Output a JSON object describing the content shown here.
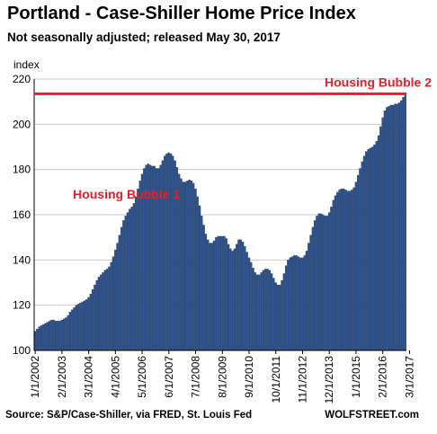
{
  "title": "Portland - Case-Shiller Home Price Index",
  "subtitle": "Not seasonally adjusted; released May 30, 2017",
  "footer": {
    "source": "Source: S&P/Case-Shiller, via FRED,  St. Louis Fed",
    "brand": "WOLFSTREET.com"
  },
  "colors": {
    "bars": "#2b4f86",
    "bar_edge": "#1c3563",
    "reference_line": "#e3202a",
    "annotation": "#e3202a",
    "grid": "#c9c9c9"
  },
  "chart_data": {
    "type": "bar",
    "title": "Portland - Case-Shiller Home Price Index",
    "subtitle": "Not seasonally adjusted; released May 30, 2017",
    "ylabel": "index",
    "ylim": [
      100,
      220
    ],
    "yticks": [
      100,
      120,
      140,
      160,
      180,
      200,
      220
    ],
    "grid": "horizontal",
    "x_start": "1/1/2002",
    "x_frequency": "monthly",
    "xticks": [
      "1/1/2002",
      "2/1/2003",
      "3/1/2004",
      "4/1/2005",
      "5/1/2006",
      "6/1/2007",
      "7/1/2008",
      "8/1/2009",
      "9/1/2010",
      "10/1/2011",
      "11/1/2012",
      "12/1/2013",
      "1/1/2015",
      "2/1/2016",
      "3/1/2017"
    ],
    "annotations": [
      {
        "text": "Housing Bubble 1",
        "x": "5/1/2006"
      },
      {
        "text": "Housing Bubble 2",
        "x": "3/1/2017"
      }
    ],
    "reference_lines": [
      {
        "y": 213.5,
        "style": "horizontal"
      }
    ],
    "series": [
      {
        "values": [
          108.5,
          109.5,
          110.5,
          111,
          111.5,
          112,
          112.5,
          113,
          113.5,
          113.5,
          113,
          113,
          113,
          113.5,
          114,
          114.5,
          115.5,
          117,
          118,
          119,
          120,
          120.5,
          121,
          121.5,
          122,
          122.5,
          123.5,
          125,
          127,
          129,
          131,
          132.5,
          133.5,
          134.5,
          135.5,
          136,
          137,
          139,
          141.5,
          144.5,
          147.5,
          151,
          154.5,
          157.5,
          159.5,
          161,
          162.5,
          163.5,
          165,
          168,
          171.5,
          175,
          178,
          180.5,
          182,
          182.5,
          182,
          181.5,
          181.5,
          180.5,
          180.5,
          182,
          184,
          186,
          187,
          187.5,
          187,
          186,
          184,
          181,
          178,
          176,
          174.5,
          174.5,
          175,
          175.5,
          175,
          174,
          171.5,
          168,
          164,
          159.5,
          155.5,
          151.5,
          149,
          147.5,
          147.5,
          148.5,
          150,
          150.5,
          150.5,
          150.5,
          150.5,
          149.5,
          147,
          145,
          144,
          145,
          147,
          149,
          149,
          148,
          146,
          143.5,
          141,
          139,
          136.5,
          134.5,
          133.5,
          133.5,
          134.5,
          135.5,
          136,
          136,
          135.5,
          134,
          132,
          130,
          129,
          129,
          131,
          134,
          137.5,
          140,
          141,
          141.5,
          142,
          142,
          141.5,
          141,
          141,
          142,
          144,
          147.5,
          151,
          154.5,
          157.5,
          159.5,
          160.5,
          160.5,
          160,
          159.5,
          159.5,
          161,
          163.5,
          166.5,
          168.5,
          170,
          171,
          171.5,
          171.5,
          171,
          170.5,
          170.5,
          171,
          172,
          174.5,
          177.5,
          180.5,
          183.5,
          186,
          188,
          189,
          189.5,
          190,
          191,
          192.5,
          195,
          199,
          203,
          206,
          207.5,
          208,
          208.5,
          208.5,
          209,
          209,
          209.5,
          210.5,
          212,
          213.5
        ]
      }
    ]
  }
}
